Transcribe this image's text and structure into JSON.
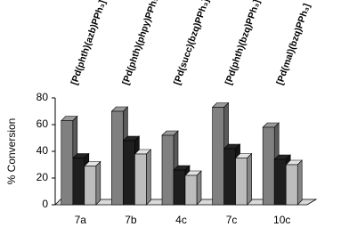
{
  "chart_data": {
    "type": "bar3d",
    "y_label": "% Conversion",
    "annotations": [
      "[Pd(phth)(azb)PPh₃]",
      "[Pd(phth)(phpy)PPh₃]",
      "[Pd(succ)(bzq)PPh₃]",
      "[Pd(phth)(bzq)PPh₃]",
      "[Pd(mal)(bzq)PPh₃]"
    ],
    "categories": [
      "7a",
      "7b",
      "4c",
      "7c",
      "10c"
    ],
    "series": [
      {
        "color": "#808080",
        "values": [
          63,
          70,
          52,
          73,
          58
        ]
      },
      {
        "color": "#1e1e1e",
        "values": [
          35,
          48,
          26,
          42,
          34
        ]
      },
      {
        "color": "#bdbdbd",
        "values": [
          29,
          38,
          22,
          35,
          30
        ]
      }
    ],
    "ylim": [
      0,
      80
    ],
    "yticks": [
      0,
      20,
      40,
      60,
      80
    ]
  }
}
